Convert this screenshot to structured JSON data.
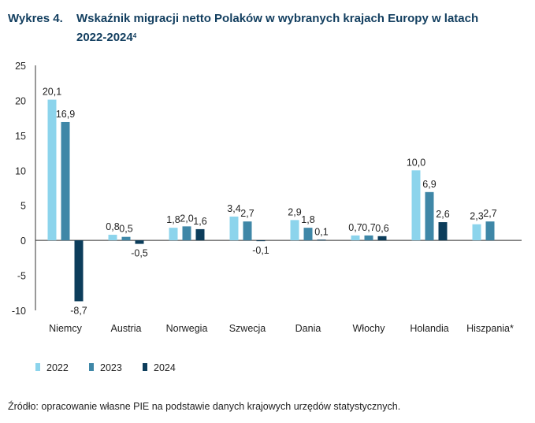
{
  "title": {
    "number": "Wykres 4.",
    "text": "Wskaźnik migracji netto Polaków w wybranych krajach Europy w latach 2022-2024",
    "footnote": "4"
  },
  "source": "Źródło: opracowanie własne PIE na podstawie danych krajowych urzędów statystycznych.",
  "chart_data": {
    "type": "bar",
    "categories": [
      "Niemcy",
      "Austria",
      "Norwegia",
      "Szwecja",
      "Dania",
      "Włochy",
      "Holandia",
      "Hiszpania*"
    ],
    "series": [
      {
        "name": "2022",
        "color": "#8cd4ec",
        "values": [
          20.1,
          0.8,
          1.8,
          3.4,
          2.9,
          0.7,
          10.0,
          2.3
        ],
        "labels": [
          "20,1",
          "0,8",
          "1,8",
          "3,4",
          "2,9",
          "0,7",
          "10,0",
          "2,3"
        ]
      },
      {
        "name": "2023",
        "color": "#3f87a7",
        "values": [
          16.9,
          0.5,
          2.0,
          2.7,
          1.8,
          0.7,
          6.9,
          2.7
        ],
        "labels": [
          "16,9",
          "0,5",
          "2,0",
          "2,7",
          "1,8",
          "0,7",
          "6,9",
          "2,7"
        ]
      },
      {
        "name": "2024",
        "color": "#0c3d5b",
        "values": [
          -8.7,
          -0.5,
          1.6,
          -0.1,
          0.1,
          0.6,
          2.6,
          null
        ],
        "labels": [
          "-8,7",
          "-0,5",
          "1,6",
          "-0,1",
          "0,1",
          "0,6",
          "2,6",
          ""
        ]
      }
    ],
    "ylim": [
      -10,
      25
    ],
    "yticks": [
      "-10",
      "-5",
      "0",
      "5",
      "10",
      "15",
      "20",
      "25"
    ],
    "grid": false,
    "legend": "bottom-left",
    "xlabel": "",
    "ylabel": ""
  }
}
